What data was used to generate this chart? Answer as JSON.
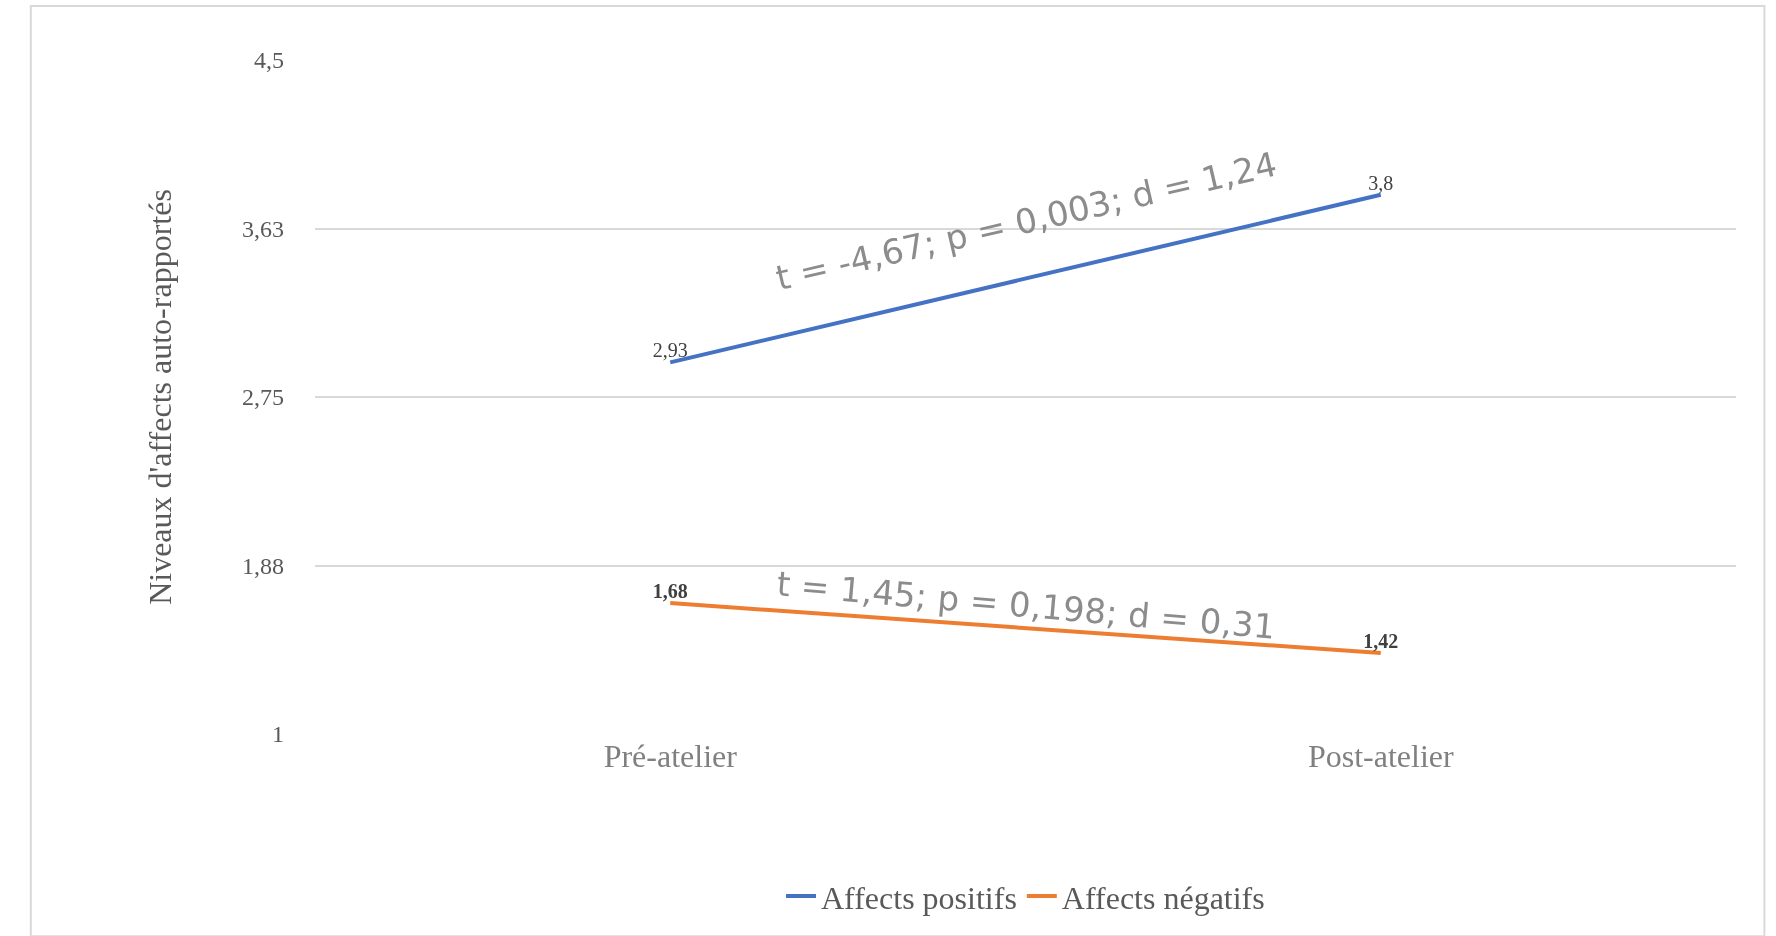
{
  "chart_data": {
    "type": "line",
    "ylabel": "Niveaux d'affects auto-rapportés",
    "categories": [
      "Pré-atelier",
      "Post-atelier"
    ],
    "series": [
      {
        "name": "Affects positifs",
        "color": "#4472c4",
        "values": [
          2.93,
          3.8
        ],
        "value_labels": [
          "2,93",
          "3,8"
        ]
      },
      {
        "name": "Affects négatifs",
        "color": "#ed7d31",
        "values": [
          1.68,
          1.42
        ],
        "value_labels": [
          "1,68",
          "1,42"
        ]
      }
    ],
    "ylim": [
      1,
      4.5
    ],
    "yticks": [
      1,
      {
        "value": 1.875,
        "label": "1,88"
      },
      {
        "value": 2.75,
        "label": "2,75"
      },
      {
        "value": 3.625,
        "label": "3,63"
      },
      {
        "value": 4.5,
        "label": "4,5"
      }
    ],
    "annotations": [
      "t = -4,67; p = 0,003; d = 1,24",
      "t = 1,45; p = 0,198; d = 0,31"
    ],
    "grid": "y",
    "legend": "bottom",
    "marker": "none",
    "line_style": "solid"
  }
}
